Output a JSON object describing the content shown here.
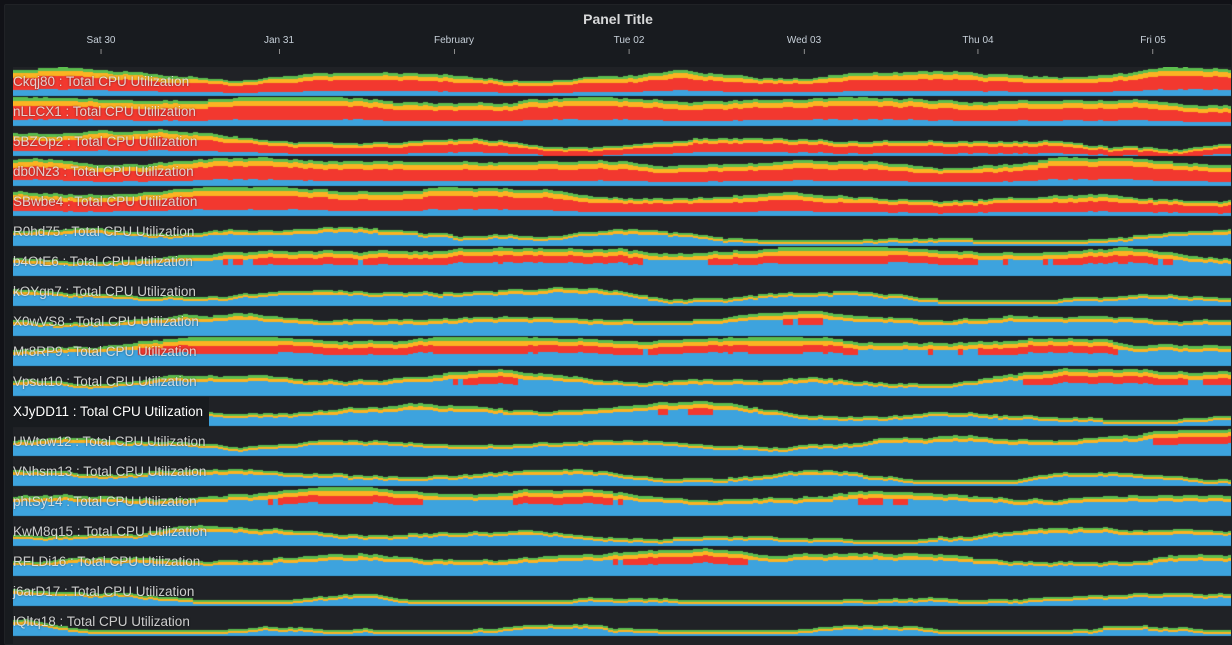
{
  "panel": {
    "title": "Panel Title"
  },
  "time_axis": {
    "ticks": [
      {
        "label": "Sat 30"
      },
      {
        "label": "Jan 31"
      },
      {
        "label": "February"
      },
      {
        "label": "Tue 02"
      },
      {
        "label": "Wed 03"
      },
      {
        "label": "Thu 04"
      },
      {
        "label": "Fri 05"
      }
    ]
  },
  "series": [
    {
      "label": "Ckqj80 : Total CPU Utilization"
    },
    {
      "label": "nLLCX1 : Total CPU Utilization"
    },
    {
      "label": "5BZOp2 : Total CPU Utilization"
    },
    {
      "label": "db0Nz3 : Total CPU Utilization"
    },
    {
      "label": "SBwbe4 : Total CPU Utilization"
    },
    {
      "label": "R0hd75 : Total CPU Utilization"
    },
    {
      "label": "b4OtE6 : Total CPU Utilization"
    },
    {
      "label": "kOYgn7 : Total CPU Utilization"
    },
    {
      "label": "X0wVS8 : Total CPU Utilization"
    },
    {
      "label": "Mr8RP9 : Total CPU Utilization"
    },
    {
      "label": "Vpsut10 : Total CPU Utilization"
    },
    {
      "label": "XJyDD11 : Total CPU Utilization"
    },
    {
      "label": "UWtow12 : Total CPU Utilization"
    },
    {
      "label": "VNhsm13 : Total CPU Utilization"
    },
    {
      "label": "phtSy14 : Total CPU Utilization"
    },
    {
      "label": "KwM8q15 : Total CPU Utilization"
    },
    {
      "label": "RFLDi16 : Total CPU Utilization"
    },
    {
      "label": "j6arD17 : Total CPU Utilization"
    },
    {
      "label": "lQltq18 : Total CPU Utilization"
    }
  ],
  "colors": {
    "background": "#181b1f",
    "empty": "#202226",
    "high": "#f2382f",
    "medium": "#fcb322",
    "low": "#3da3de",
    "idle": "#5cbe4e"
  }
}
